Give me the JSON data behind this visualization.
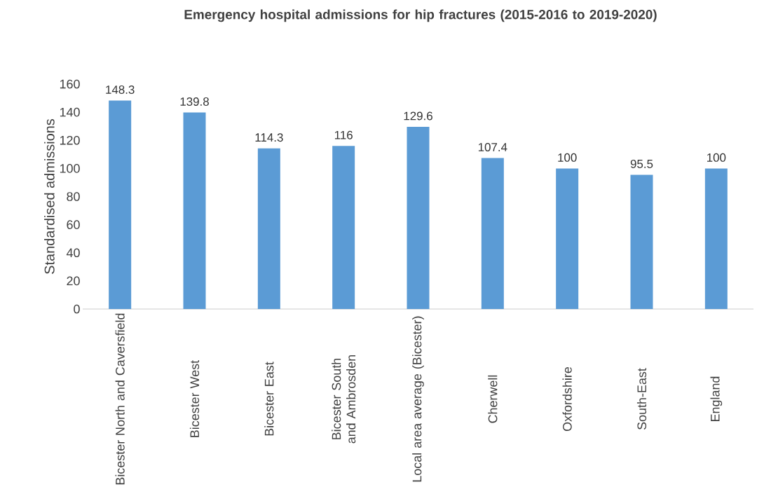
{
  "chart_data": {
    "type": "bar",
    "title": "Emergency hospital admissions for hip fractures (2015-2016 to 2019-2020)",
    "ylabel": "Standardised admissions",
    "categories": [
      "Bicester North and Caversfield",
      "Bicester West",
      "Bicester East",
      "Bicester South and Ambrosden",
      "Local area average (Bicester)",
      "Cherwell",
      "Oxfordshire",
      "South-East",
      "England"
    ],
    "values": [
      148.3,
      139.8,
      114.3,
      116,
      129.6,
      107.4,
      100,
      95.5,
      100
    ],
    "color": "#5b9bd5",
    "ylim": [
      0,
      160
    ],
    "yticks": [
      0,
      20,
      40,
      60,
      80,
      100,
      120,
      140,
      160
    ],
    "data_labels": true,
    "grid": false
  }
}
